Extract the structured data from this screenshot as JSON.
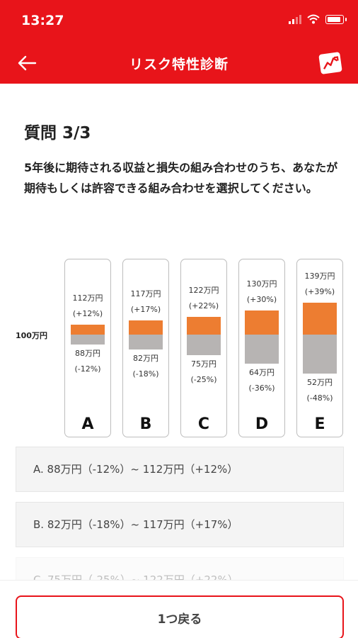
{
  "status": {
    "time": "13:27"
  },
  "header": {
    "title": "リスク特性診断"
  },
  "question": {
    "title": "質問 3/3",
    "text": "5年後に期待される収益と損失の組み合わせのうち、あなたが期待もしくは許容できる組み合わせを選択してください。"
  },
  "chart_data": {
    "type": "bar",
    "base_label": "100万円",
    "base_value": 100,
    "categories": [
      "A",
      "B",
      "C",
      "D",
      "E"
    ],
    "gain_values": [
      112,
      117,
      122,
      130,
      139
    ],
    "loss_values": [
      88,
      82,
      75,
      64,
      52
    ],
    "gain_amount_labels": [
      "112万円",
      "117万円",
      "122万円",
      "130万円",
      "139万円"
    ],
    "gain_percent_labels": [
      "(+12%)",
      "(+17%)",
      "(+22%)",
      "(+30%)",
      "(+39%)"
    ],
    "loss_amount_labels": [
      "88万円",
      "82万円",
      "75万円",
      "64万円",
      "52万円"
    ],
    "loss_percent_labels": [
      "(-12%)",
      "(-18%)",
      "(-25%)",
      "(-36%)",
      "(-48%)"
    ],
    "colors": {
      "gain": "#ed7d31",
      "loss": "#b7b4b3"
    }
  },
  "options": [
    {
      "label": "A. 88万円（-12%）~ 112万円（+12%）"
    },
    {
      "label": "B. 82万円（-18%）~ 117万円（+17%）"
    },
    {
      "label": "C. 75万円（-25%）~ 122万円（+22%）"
    }
  ],
  "footer": {
    "back_label": "1つ戻る"
  },
  "colors": {
    "brand": "#e8141a"
  }
}
